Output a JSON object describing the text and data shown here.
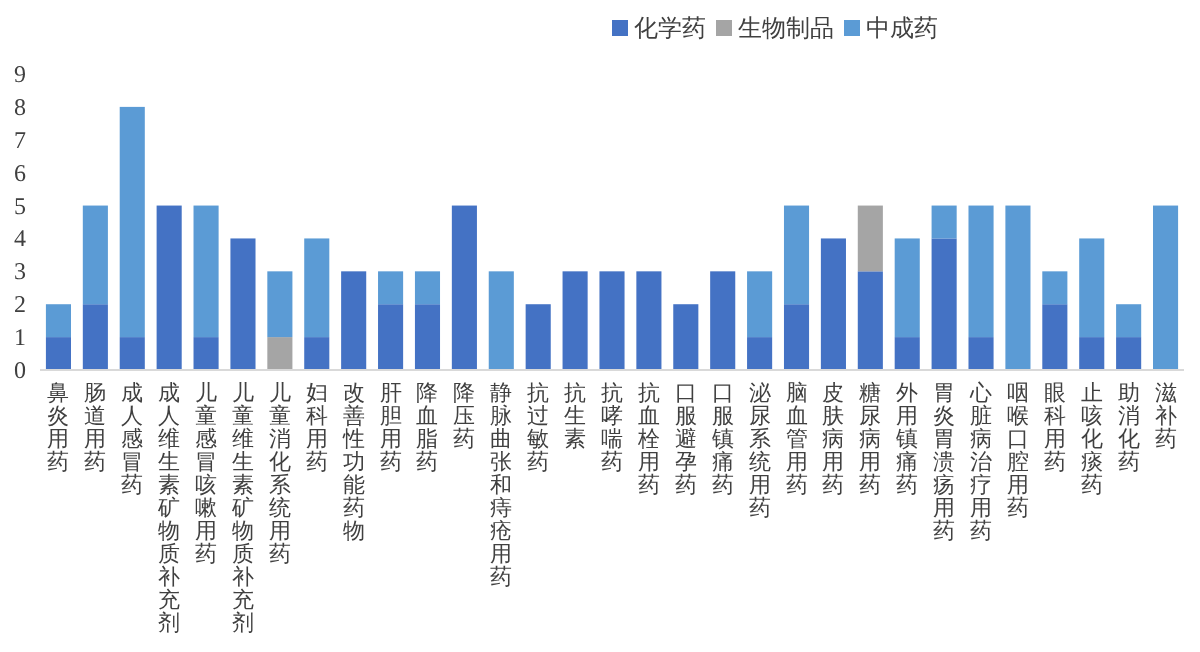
{
  "chart_data": {
    "type": "bar",
    "stacked": true,
    "legend": "top",
    "grid": false,
    "categories": [
      "鼻炎用药",
      "肠道用药",
      "成人感冒药",
      "成人维生素矿物质补充剂",
      "儿童感冒咳嗽用药",
      "儿童维生素矿物质补充剂",
      "儿童消化系统用药",
      "妇科用药",
      "改善性功能药物",
      "肝胆用药",
      "降血脂药",
      "降压药",
      "静脉曲张和痔疮用药",
      "抗过敏药",
      "抗生素",
      "抗哮喘药",
      "抗血栓用药",
      "口服避孕药",
      "口服镇痛药",
      "泌尿系统用药",
      "脑血管用药",
      "皮肤病用药",
      "糖尿病用药",
      "外用镇痛药",
      "胃炎胃溃疡用药",
      "心脏病治疗用药",
      "咽喉口腔用药",
      "眼科用药",
      "止咳化痰药",
      "助消化药",
      "滋补药"
    ],
    "series": [
      {
        "name": "化学药",
        "color": "#4472c4",
        "values": [
          1,
          2,
          1,
          5,
          1,
          4,
          0,
          1,
          3,
          2,
          2,
          5,
          0,
          2,
          3,
          3,
          3,
          2,
          3,
          1,
          2,
          4,
          3,
          1,
          4,
          1,
          0,
          2,
          1,
          1,
          0
        ]
      },
      {
        "name": "生物制品",
        "color": "#a5a5a5",
        "values": [
          0,
          0,
          0,
          0,
          0,
          0,
          1,
          0,
          0,
          0,
          0,
          0,
          0,
          0,
          0,
          0,
          0,
          0,
          0,
          0,
          0,
          0,
          2,
          0,
          0,
          0,
          0,
          0,
          0,
          0,
          0
        ]
      },
      {
        "name": "中成药",
        "color": "#5b9bd5",
        "values": [
          1,
          3,
          7,
          0,
          4,
          0,
          2,
          3,
          0,
          1,
          1,
          0,
          3,
          0,
          0,
          0,
          0,
          0,
          0,
          2,
          3,
          0,
          0,
          3,
          1,
          4,
          5,
          1,
          3,
          1,
          5
        ]
      }
    ],
    "ylim": [
      0,
      9
    ],
    "yticks": [
      0,
      1,
      2,
      3,
      4,
      5,
      6,
      7,
      8,
      9
    ]
  }
}
